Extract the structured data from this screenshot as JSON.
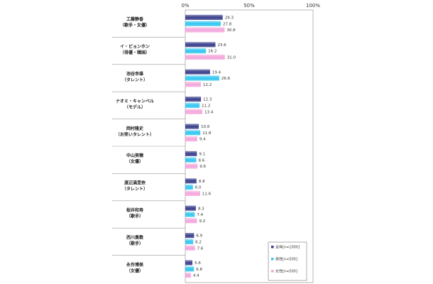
{
  "chart_data": {
    "type": "bar",
    "orientation": "horizontal",
    "xlim": [
      0,
      100
    ],
    "x_ticks": [
      "0%",
      "50%",
      "100%"
    ],
    "grid": false,
    "legend_position": "bottom-right",
    "categories": [
      [
        "工藤静香",
        "（歌手・女優）"
      ],
      [
        "イ・ビョンホン",
        "（俳優・韓国）"
      ],
      [
        "池谷幸雄",
        "（タレント）"
      ],
      [
        "ナオミ・キャンベル",
        "（モデル）"
      ],
      [
        "岡村隆史",
        "（お笑いタレント）"
      ],
      [
        "中山美穂",
        "（女優）"
      ],
      [
        "渡辺満里奈",
        "（タレント）"
      ],
      [
        "桜井和寿",
        "（歌手）"
      ],
      [
        "西川貴教",
        "（歌手）"
      ],
      [
        "永作博美",
        "（女優）"
      ]
    ],
    "series": [
      {
        "name": "全体[n=1000]",
        "color": "#3a3f8c",
        "values": [
          29.3,
          23.6,
          19.4,
          12.3,
          10.6,
          9.1,
          8.8,
          8.3,
          6.9,
          5.6
        ]
      },
      {
        "name": "男性[n=500]",
        "color": "#33c6f0",
        "values": [
          27.8,
          16.2,
          26.6,
          11.2,
          11.8,
          8.6,
          6.0,
          7.4,
          6.2,
          6.8
        ]
      },
      {
        "name": "女性[n=500]",
        "color": "#f4a6dc",
        "values": [
          30.8,
          31.0,
          12.2,
          13.4,
          9.4,
          9.6,
          11.6,
          9.2,
          7.6,
          4.4
        ]
      }
    ]
  }
}
